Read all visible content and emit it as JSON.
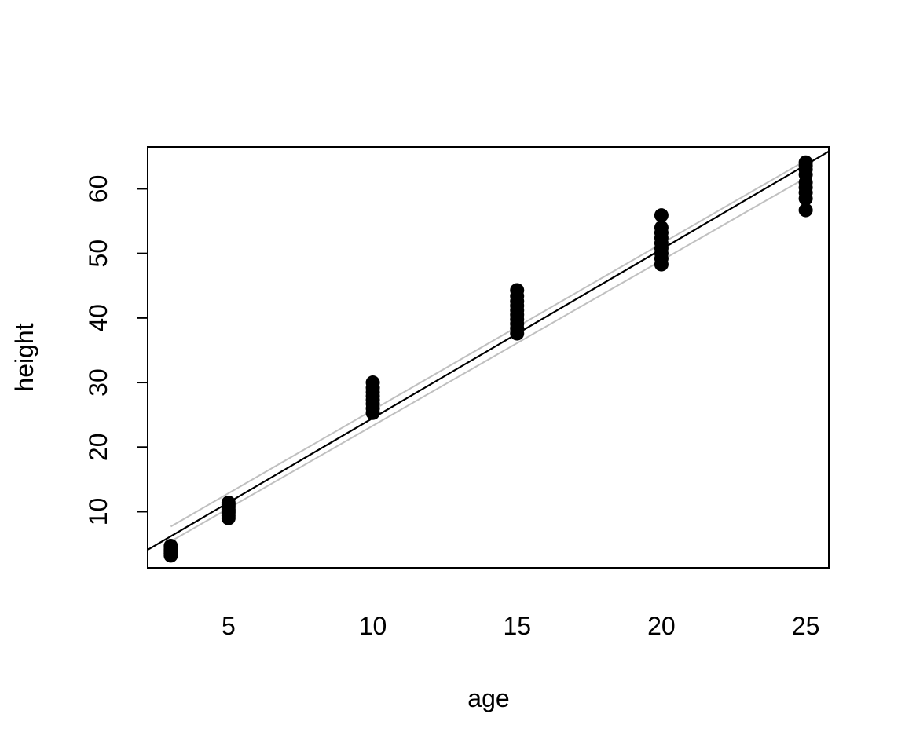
{
  "chart_data": {
    "type": "scatter",
    "title": "",
    "xlabel": "age",
    "ylabel": "height",
    "xlim": [
      2.2,
      25.8
    ],
    "ylim": [
      1.3,
      66.5
    ],
    "x_ticks": [
      5,
      10,
      15,
      20,
      25
    ],
    "y_ticks": [
      10,
      20,
      30,
      40,
      50,
      60
    ],
    "grid": false,
    "legend": "none",
    "point_color": "#000000",
    "fit_line_color": "#000000",
    "band_line_color": "#c0c0c0",
    "series": [
      {
        "type": "scatter",
        "points": [
          {
            "x": 3,
            "y": 3.2
          },
          {
            "x": 3,
            "y": 3.5
          },
          {
            "x": 3,
            "y": 3.8
          },
          {
            "x": 3,
            "y": 4.0
          },
          {
            "x": 3,
            "y": 4.2
          },
          {
            "x": 3,
            "y": 4.5
          },
          {
            "x": 3,
            "y": 3.6
          },
          {
            "x": 3,
            "y": 4.7
          },
          {
            "x": 5,
            "y": 9.0
          },
          {
            "x": 5,
            "y": 9.4
          },
          {
            "x": 5,
            "y": 9.8
          },
          {
            "x": 5,
            "y": 10.1
          },
          {
            "x": 5,
            "y": 10.4
          },
          {
            "x": 5,
            "y": 10.8
          },
          {
            "x": 5,
            "y": 11.1
          },
          {
            "x": 5,
            "y": 11.4
          },
          {
            "x": 10,
            "y": 25.3
          },
          {
            "x": 10,
            "y": 26.0
          },
          {
            "x": 10,
            "y": 26.7
          },
          {
            "x": 10,
            "y": 27.3
          },
          {
            "x": 10,
            "y": 27.9
          },
          {
            "x": 10,
            "y": 28.5
          },
          {
            "x": 10,
            "y": 29.2
          },
          {
            "x": 10,
            "y": 30.0
          },
          {
            "x": 15,
            "y": 37.6
          },
          {
            "x": 15,
            "y": 38.4
          },
          {
            "x": 15,
            "y": 39.1
          },
          {
            "x": 15,
            "y": 39.8
          },
          {
            "x": 15,
            "y": 40.5
          },
          {
            "x": 15,
            "y": 41.2
          },
          {
            "x": 15,
            "y": 41.9
          },
          {
            "x": 15,
            "y": 42.6
          },
          {
            "x": 15,
            "y": 43.4
          },
          {
            "x": 15,
            "y": 44.3
          },
          {
            "x": 20,
            "y": 48.3
          },
          {
            "x": 20,
            "y": 49.2
          },
          {
            "x": 20,
            "y": 50.0
          },
          {
            "x": 20,
            "y": 50.8
          },
          {
            "x": 20,
            "y": 51.6
          },
          {
            "x": 20,
            "y": 52.4
          },
          {
            "x": 20,
            "y": 53.2
          },
          {
            "x": 20,
            "y": 54.0
          },
          {
            "x": 20,
            "y": 55.9
          },
          {
            "x": 25,
            "y": 56.7
          },
          {
            "x": 25,
            "y": 58.5
          },
          {
            "x": 25,
            "y": 59.4
          },
          {
            "x": 25,
            "y": 60.2
          },
          {
            "x": 25,
            "y": 61.0
          },
          {
            "x": 25,
            "y": 62.2
          },
          {
            "x": 25,
            "y": 63.0
          },
          {
            "x": 25,
            "y": 63.6
          },
          {
            "x": 25,
            "y": 64.1
          }
        ]
      },
      {
        "type": "line",
        "role": "fit",
        "x": [
          2.2,
          25.8
        ],
        "y": [
          4.1,
          65.8
        ]
      },
      {
        "type": "line",
        "role": "upper-band",
        "x": [
          3,
          25
        ],
        "y": [
          7.7,
          64.4
        ]
      },
      {
        "type": "line",
        "role": "lower-band",
        "x": [
          3,
          25
        ],
        "y": [
          5.4,
          61.7
        ]
      }
    ]
  }
}
